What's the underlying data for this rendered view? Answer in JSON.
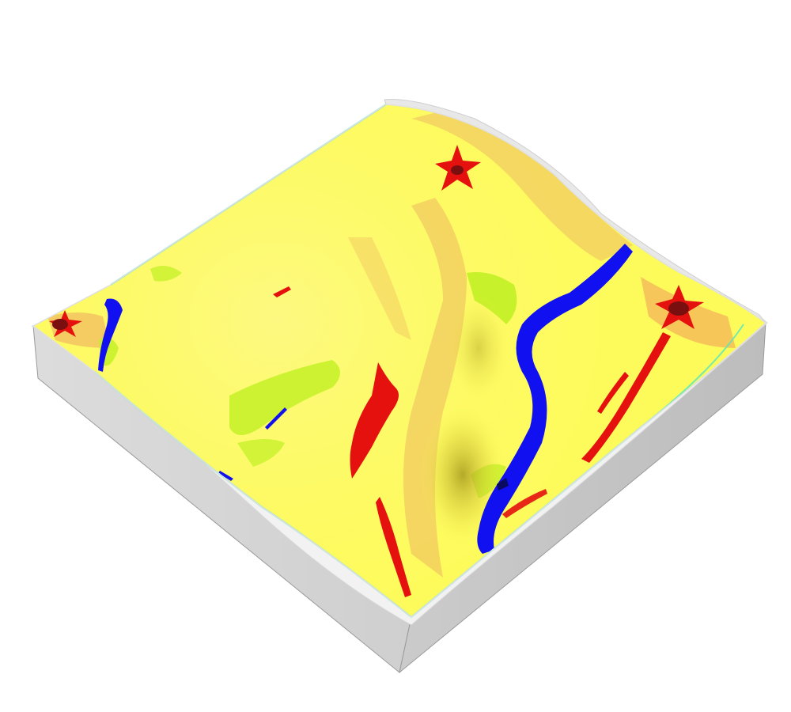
{
  "scene": {
    "description_visible_text": "",
    "colors": {
      "background": "#ffffff",
      "terrain_base": "#fdfb5a",
      "terrain_light": "#fcf670",
      "terrain_orange": "#f3d062",
      "terrain_green": "#c7f12a",
      "river": "#1010f0",
      "ridge_red": "#e4110e",
      "peak_dark": "#7a0f0f",
      "edge_cyan": "#4fe6c5",
      "box_left": "#d4d4d4",
      "box_right": "#c2c2c2",
      "box_rim": "#f2f2f2"
    },
    "icons": {
      "peaks": "star-burst-icon",
      "river": "river-channel-icon"
    }
  }
}
